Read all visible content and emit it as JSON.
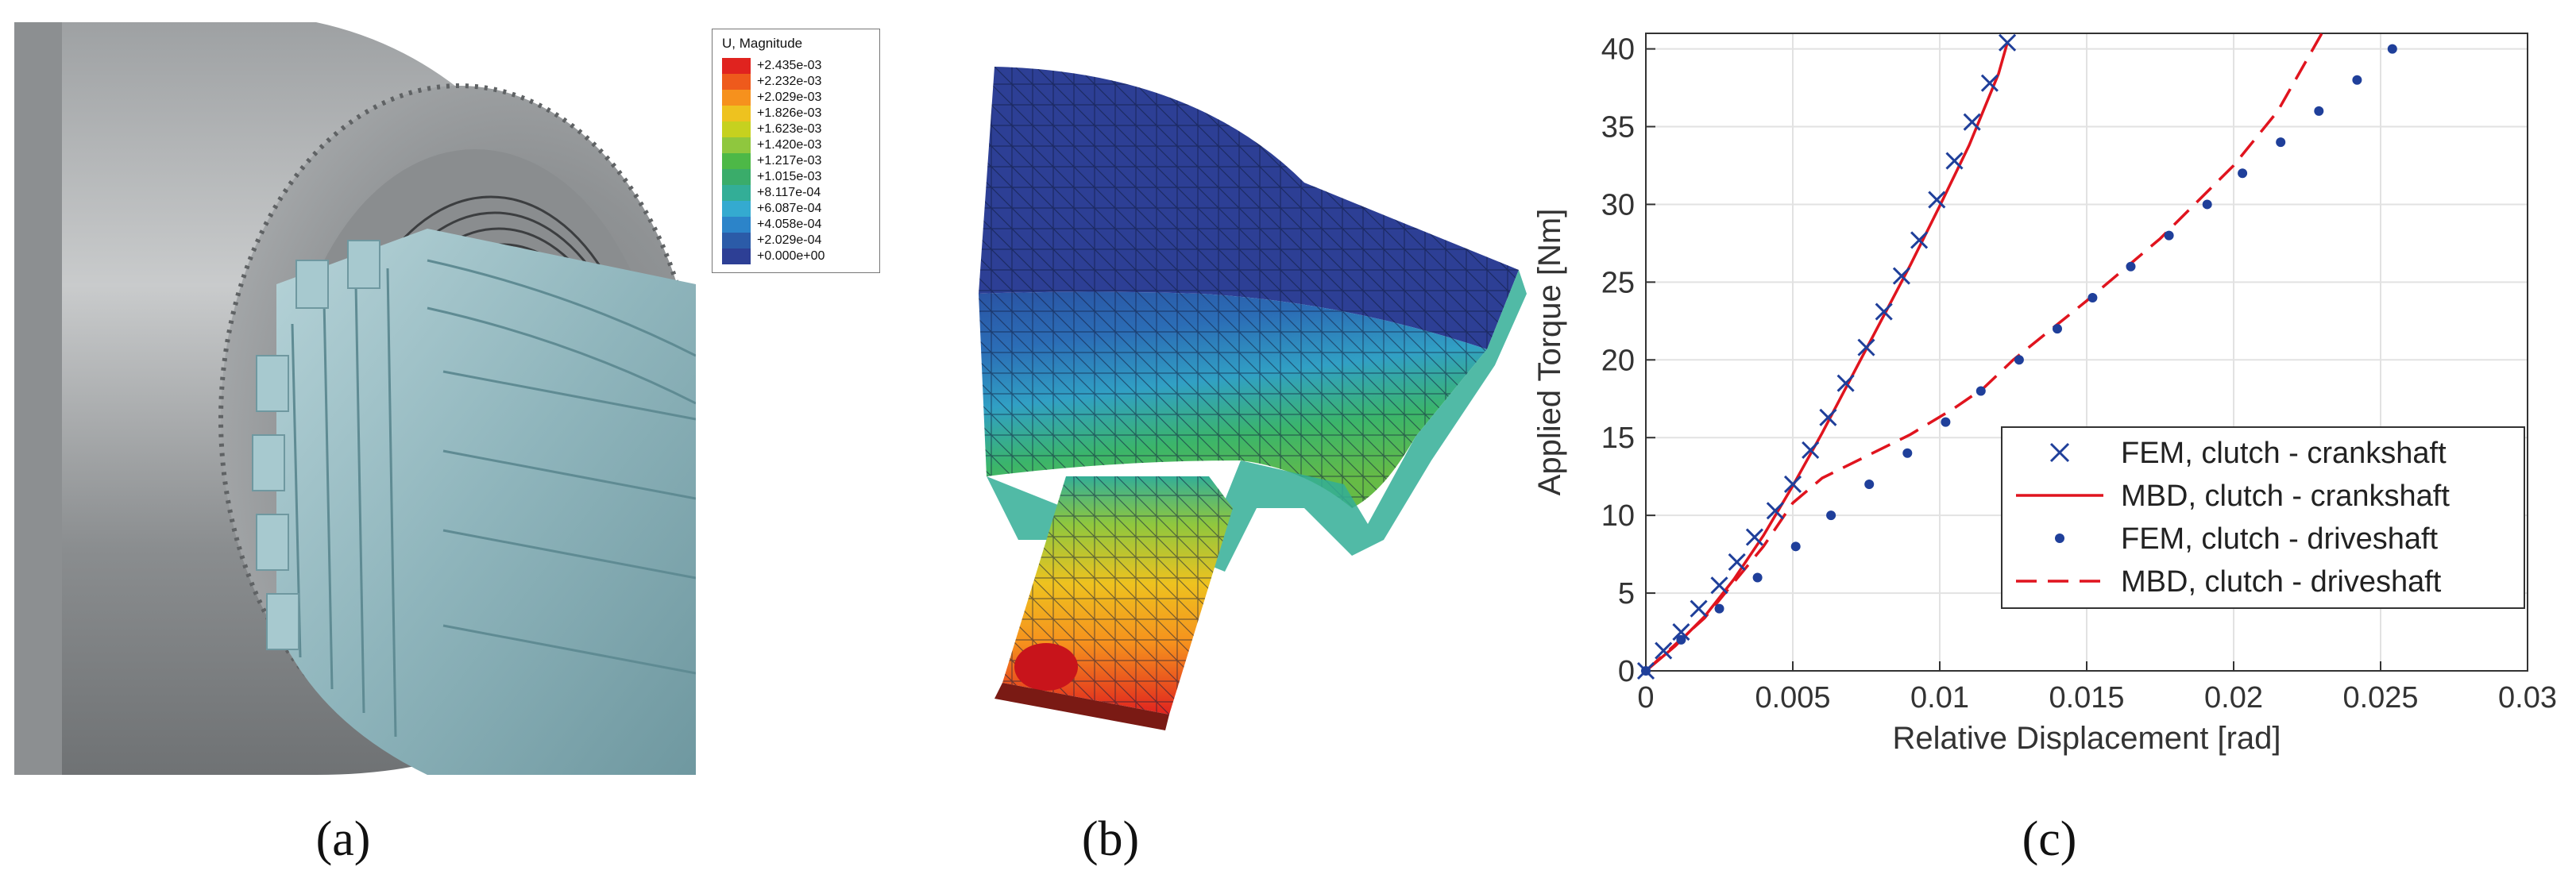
{
  "figure": {
    "captions": [
      "(a)",
      "(b)",
      "(c)"
    ]
  },
  "legend_a": {
    "title": "U, Magnitude",
    "entries": [
      "+2.435e-03",
      "+2.232e-03",
      "+2.029e-03",
      "+1.826e-03",
      "+1.623e-03",
      "+1.420e-03",
      "+1.217e-03",
      "+1.015e-03",
      "+8.117e-04",
      "+6.087e-04",
      "+4.058e-04",
      "+2.029e-04",
      "+0.000e+00"
    ],
    "colors": [
      "#e0231f",
      "#ee5a1c",
      "#f6911d",
      "#eec21f",
      "#c6d11f",
      "#8fc73e",
      "#4db847",
      "#3aac6a",
      "#33ae97",
      "#34aad0",
      "#2c84c9",
      "#2b5ba8",
      "#2d3f95"
    ]
  },
  "chart_data": {
    "type": "scatter",
    "xlabel": "Relative Displacement [rad]",
    "ylabel": "Applied Torque [Nm]",
    "xlim": [
      0,
      0.03
    ],
    "ylim": [
      0,
      41
    ],
    "xticks": [
      0,
      0.005,
      0.01,
      0.015,
      0.02,
      0.025,
      0.03
    ],
    "xtick_labels": [
      "0",
      "0.005",
      "0.01",
      "0.015",
      "0.02",
      "0.025",
      "0.03"
    ],
    "yticks": [
      0,
      5,
      10,
      15,
      20,
      25,
      30,
      35,
      40
    ],
    "ytick_labels": [
      "0",
      "5",
      "10",
      "15",
      "20",
      "25",
      "30",
      "35",
      "40"
    ],
    "grid": true,
    "legend_position": "bottom-right",
    "series": [
      {
        "name": "FEM, clutch - crankshaft",
        "style": "x-marker",
        "color": "#1f3f9a",
        "x": [
          0,
          0.0006,
          0.0012,
          0.0018,
          0.0025,
          0.0031,
          0.0037,
          0.0044,
          0.005,
          0.0056,
          0.0062,
          0.0068,
          0.0075,
          0.0081,
          0.0087,
          0.0093,
          0.0099,
          0.0105,
          0.0111,
          0.0117,
          0.0123
        ],
        "y": [
          0,
          1.3,
          2.5,
          4.0,
          5.5,
          7.0,
          8.6,
          10.3,
          12.0,
          14.2,
          16.3,
          18.5,
          20.8,
          23.1,
          25.4,
          27.7,
          30.3,
          32.8,
          35.3,
          37.8,
          40.4
        ]
      },
      {
        "name": "MBD, clutch - crankshaft",
        "style": "solid-line",
        "color": "#e0141e",
        "x": [
          0,
          0.001,
          0.002,
          0.003,
          0.004,
          0.005,
          0.006,
          0.007,
          0.008,
          0.009,
          0.01,
          0.011,
          0.012,
          0.0123
        ],
        "y": [
          0,
          1.6,
          3.5,
          5.9,
          8.7,
          11.9,
          15.3,
          18.9,
          22.5,
          26.1,
          29.9,
          33.8,
          38.4,
          40.4
        ]
      },
      {
        "name": "FEM, clutch - driveshaft",
        "style": "dot-marker",
        "color": "#1f3f9a",
        "x": [
          0,
          0.0012,
          0.0025,
          0.0038,
          0.0051,
          0.0063,
          0.0076,
          0.0089,
          0.0102,
          0.0114,
          0.0127,
          0.014,
          0.0152,
          0.0165,
          0.0178,
          0.0191,
          0.0203,
          0.0216,
          0.0229,
          0.0242,
          0.0254
        ],
        "y": [
          0,
          2,
          4,
          6,
          8,
          10,
          12,
          14,
          16,
          18,
          20,
          22,
          24,
          26,
          28,
          30,
          32,
          34,
          36,
          38,
          40
        ]
      },
      {
        "name": "MBD, clutch - driveshaft",
        "style": "dashed-line",
        "color": "#e0141e",
        "x": [
          0,
          0.002,
          0.004,
          0.005,
          0.006,
          0.0075,
          0.009,
          0.0105,
          0.0115,
          0.0125,
          0.015,
          0.0175,
          0.02,
          0.0215,
          0.023
        ],
        "y": [
          0,
          3.4,
          8.0,
          10.8,
          12.4,
          13.8,
          15.2,
          16.9,
          18.2,
          20.0,
          23.8,
          27.8,
          32.5,
          36.0,
          41.0
        ]
      }
    ]
  }
}
